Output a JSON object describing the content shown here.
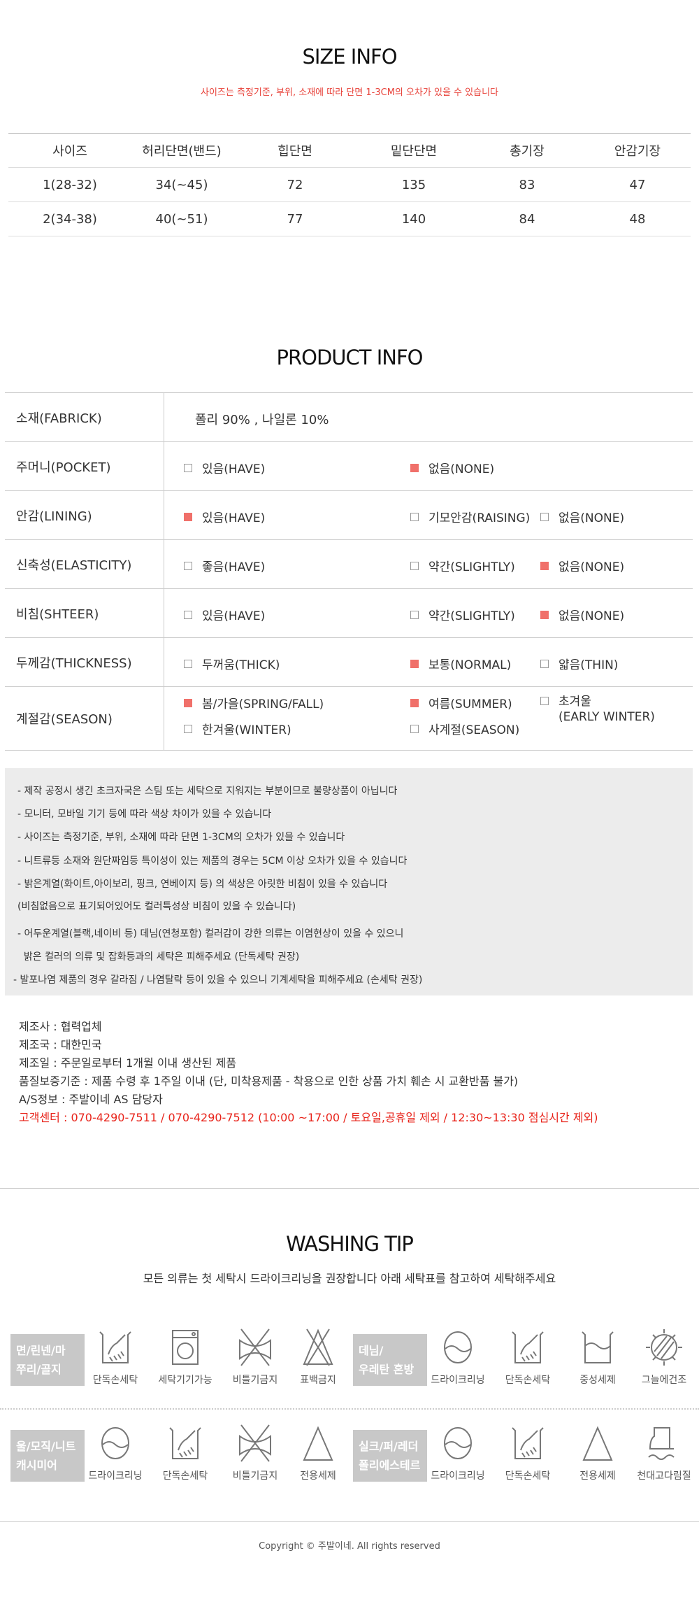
{
  "size_info": {
    "title": "SIZE INFO",
    "note": "사이즈는 측정기준, 부위, 소재에 따라 단면 1-3CM의 오차가 있을 수 있습니다",
    "headers": [
      "사이즈",
      "허리단면(밴드)",
      "힙단면",
      "밑단단면",
      "총기장",
      "안감기장"
    ],
    "rows": [
      [
        "1(28-32)",
        "34(~45)",
        "72",
        "135",
        "83",
        "47"
      ],
      [
        "2(34-38)",
        "40(~51)",
        "77",
        "140",
        "84",
        "48"
      ]
    ]
  },
  "product_info": {
    "title": "PRODUCT INFO",
    "accent": "#f0706a",
    "fabric_label": "소재(FABRICK)",
    "fabric_value": "폴리 90% , 나일론 10%",
    "rows": [
      {
        "label": "주머니(POCKET)",
        "options": [
          {
            "text": "있음(HAVE)",
            "checked": false
          },
          {
            "text": "없음(NONE)",
            "checked": true
          }
        ]
      },
      {
        "label": "안감(LINING)",
        "options": [
          {
            "text": "있음(HAVE)",
            "checked": true
          },
          {
            "text": "기모안감(RAISING)",
            "checked": false
          },
          {
            "text": "없음(NONE)",
            "checked": false
          }
        ]
      },
      {
        "label": "신축성(ELASTICITY)",
        "options": [
          {
            "text": "좋음(HAVE)",
            "checked": false
          },
          {
            "text": "약간(SLIGHTLY)",
            "checked": false
          },
          {
            "text": "없음(NONE)",
            "checked": true
          }
        ]
      },
      {
        "label": "비침(SHTEER)",
        "options": [
          {
            "text": "있음(HAVE)",
            "checked": false
          },
          {
            "text": "약간(SLIGHTLY)",
            "checked": false
          },
          {
            "text": "없음(NONE)",
            "checked": true
          }
        ]
      },
      {
        "label": "두께감(THICKNESS)",
        "options": [
          {
            "text": "두꺼움(THICK)",
            "checked": false
          },
          {
            "text": "보통(NORMAL)",
            "checked": true
          },
          {
            "text": "얇음(THIN)",
            "checked": false
          }
        ]
      },
      {
        "label": "계절감(SEASON)",
        "options": [
          {
            "text": "봄/가을(SPRING/FALL)",
            "checked": true
          },
          {
            "text": "여름(SUMMER)",
            "checked": true
          },
          {
            "text": "초겨울",
            "text2": "(EARLY WINTER)",
            "checked": false
          },
          {
            "text": "한겨울(WINTER)",
            "checked": false
          },
          {
            "text": "사계절(SEASON)",
            "checked": false
          }
        ]
      }
    ]
  },
  "notices": [
    "- 제작 공정시 생긴 초크자국은 스팀 또는 세탁으로 지워지는 부분이므로 불량상품이 아닙니다",
    "- 모니터, 모바일 기기 등에 따라 색상 차이가 있을 수 있습니다",
    "- 사이즈는 측정기준, 부위, 소재에 따라 단면 1-3CM의 오차가 있을 수 있습니다",
    "- 니트류등 소재와 원단짜임등 특이성이 있는 제품의 경우는 5CM 이상 오차가 있을 수 있습니다",
    "- 밝은계열(화이트,아이보리, 핑크, 연베이지 등) 의 색상은 아릿한 비침이 있을 수 있습니다",
    "(비침없음으로 표기되어있어도 컬러특성상 비침이 있을 수 있습니다)",
    "- 어두운계열(블랙,네이비 등) 데님(연청포함) 컬러감이 강한 의류는 이염현상이 있을 수 있으니",
    "  밝은 컬러의 의류 및 잡화등과의 세탁은 피해주세요 (단독세탁 권장)",
    "- 발포나염 제품의 경우 갈라짐 / 나염탈락 등이 있을 수 있으니 기계세탁을 피해주세요 (손세탁 권장)"
  ],
  "manufacturer": [
    "제조사 : 협력업체",
    "제조국 : 대한민국",
    "제조일 :  주문일로부터 1개월 이내 생산된 제품",
    "품질보증기준 : 제품 수령 후 1주일 이내 (단, 미착용제품 - 착용으로 인한 상품 가치 훼손 시 교환반품 불가)",
    "A/S정보 : 주발이네 AS 담당자"
  ],
  "service_center": "고객센터 : 070-4290-7511 / 070-4290-7512 (10:00 ~17:00 / 토요일,공휴일 제외 / 12:30~13:30 점심시간 제외)",
  "washing": {
    "title": "WASHING TIP",
    "subtitle": "모든 의류는 첫 세탁시 드라이크리닝을 권장합니다 아래 세탁표를 참고하여 세탁해주세요",
    "groups": [
      {
        "category": [
          "면/린넨/마",
          "쭈리/골지"
        ],
        "items": [
          {
            "icon": "hand-wash-icon",
            "label": "단독손세탁"
          },
          {
            "icon": "washing-machine-icon",
            "label": "세탁기기가능"
          },
          {
            "icon": "no-wring-icon",
            "label": "비틀기금지"
          },
          {
            "icon": "no-bleach-icon",
            "label": "표백금지"
          }
        ]
      },
      {
        "category": [
          "데님/",
          "우레탄 혼방"
        ],
        "items": [
          {
            "icon": "dry-clean-icon",
            "label": "드라이크리닝"
          },
          {
            "icon": "hand-wash-icon",
            "label": "단독손세탁"
          },
          {
            "icon": "neutral-detergent-icon",
            "label": "중성세제"
          },
          {
            "icon": "shade-dry-icon",
            "label": "그늘에건조"
          }
        ]
      },
      {
        "category": [
          "울/모직/니트",
          "캐시미어"
        ],
        "items": [
          {
            "icon": "dry-clean-icon",
            "label": "드라이크리닝"
          },
          {
            "icon": "hand-wash-icon",
            "label": "단독손세탁"
          },
          {
            "icon": "no-wring-icon",
            "label": "비틀기금지"
          },
          {
            "icon": "detergent-icon",
            "label": "전용세제"
          }
        ]
      },
      {
        "category": [
          "실크/퍼/레더",
          "폴리에스테르"
        ],
        "items": [
          {
            "icon": "dry-clean-icon",
            "label": "드라이크리닝"
          },
          {
            "icon": "hand-wash-icon",
            "label": "단독손세탁"
          },
          {
            "icon": "detergent-icon",
            "label": "전용세제"
          },
          {
            "icon": "iron-cloth-icon",
            "label": "천대고다림질"
          }
        ]
      }
    ]
  },
  "footer": {
    "copyright": "Copyright © 주발이네. All rights reserved"
  }
}
